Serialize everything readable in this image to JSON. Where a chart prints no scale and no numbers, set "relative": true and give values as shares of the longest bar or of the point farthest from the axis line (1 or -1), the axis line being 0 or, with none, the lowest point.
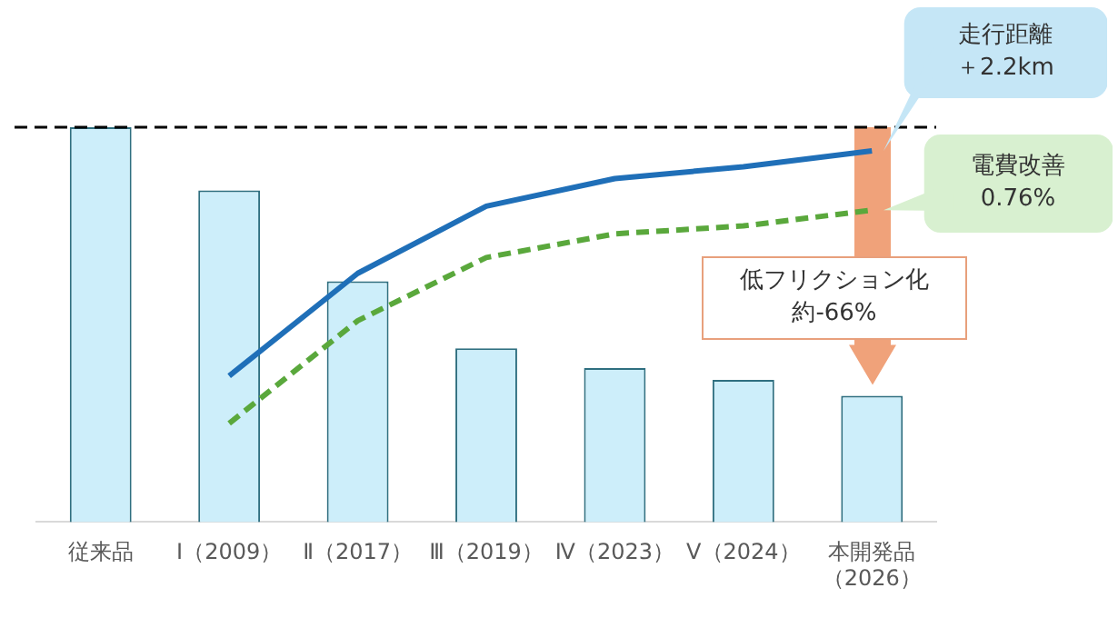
{
  "chart_data": {
    "type": "bar",
    "relative": true,
    "categories": [
      "従来品",
      "Ⅰ（2009）",
      "Ⅱ（2017）",
      "Ⅲ（2019）",
      "Ⅳ（2023）",
      "Ⅴ（2024）",
      "本開発品（2026）"
    ],
    "series": [
      {
        "color": "#cdeefa",
        "values": [
          1,
          0.84,
          0.61,
          0.44,
          0.39,
          0.36,
          0.32
        ]
      },
      {
        "type": "line",
        "color": "#1f6fb8",
        "line_style": "solid",
        "values": [
          null,
          0.37,
          0.63,
          0.8,
          0.87,
          0.9,
          0.94
        ]
      },
      {
        "type": "line",
        "color": "#5aa83c",
        "line_style": "dashed",
        "values": [
          null,
          0.25,
          0.51,
          0.67,
          0.73,
          0.75,
          0.79
        ]
      }
    ],
    "marker": "none",
    "grid": false,
    "tick_labels": "x",
    "ref_lines": [
      {
        "axis": "y",
        "value": 1,
        "color": "#000000",
        "line_style": "dashed"
      }
    ],
    "annotations": [
      "走行距離",
      "＋2.2km",
      "電費改善",
      "0.76%",
      "低フリクション化",
      "約-66%"
    ]
  }
}
